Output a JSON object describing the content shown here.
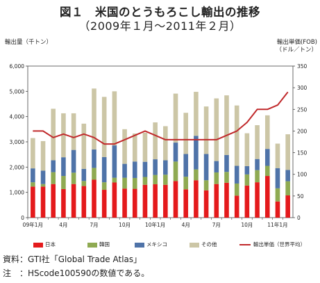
{
  "title_line1": "図１　米国のとうもろこし輸出の推移",
  "title_line2": "（2009年１月～2011年２月）",
  "left_axis_title": "輸出量（千トン）",
  "right_axis_title_1": "輸出単価(FOB)",
  "right_axis_title_2": "（ドル／トン）",
  "legend": {
    "japan": "日本",
    "korea": "韓国",
    "mexico": "メキシコ",
    "other": "その他",
    "price": "輸出単価（世界平均）"
  },
  "source_line": "資料：GTI社「Global Trade Atlas」",
  "note_line": "注　：HScode100590の数値である。",
  "colors": {
    "japan": "#e41a1c",
    "korea": "#8faa52",
    "mexico": "#4f73a8",
    "other": "#ccc6a6",
    "price": "#c0282a"
  },
  "chart_data": {
    "type": "bar",
    "stacked": true,
    "categories": [
      "09年1月",
      "",
      "",
      "4月",
      "",
      "",
      "7月",
      "",
      "",
      "10月",
      "",
      "",
      "10年1月",
      "",
      "",
      "4月",
      "",
      "",
      "7月",
      "",
      "",
      "10月",
      "",
      "",
      "11年1月",
      ""
    ],
    "series": [
      {
        "name": "日本",
        "values": [
          1230,
          1230,
          1330,
          1130,
          1330,
          1250,
          1500,
          1100,
          1390,
          1150,
          1140,
          1300,
          1320,
          1300,
          1450,
          1120,
          1480,
          1080,
          1330,
          1380,
          870,
          1270,
          1400,
          1650,
          640,
          880
        ]
      },
      {
        "name": "韓国",
        "values": [
          170,
          100,
          470,
          520,
          450,
          200,
          470,
          300,
          190,
          430,
          430,
          310,
          370,
          400,
          770,
          500,
          430,
          400,
          460,
          430,
          480,
          440,
          480,
          400,
          520,
          560
        ]
      },
      {
        "name": "メキシコ",
        "values": [
          550,
          530,
          470,
          740,
          900,
          480,
          730,
          1000,
          1280,
          550,
          650,
          600,
          620,
          570,
          750,
          900,
          1330,
          1040,
          450,
          670,
          700,
          330,
          440,
          670,
          800,
          450
        ]
      },
      {
        "name": "その他",
        "values": [
          1200,
          1170,
          2040,
          1740,
          1450,
          1790,
          2410,
          2380,
          2140,
          1370,
          1110,
          1150,
          1460,
          1350,
          1940,
          1630,
          1740,
          1880,
          2480,
          2360,
          2390,
          1300,
          1340,
          1330,
          970,
          1410
        ]
      }
    ],
    "line_series": {
      "name": "輸出単価（世界平均）",
      "axis": "right",
      "values": [
        200,
        200,
        185,
        193,
        185,
        193,
        185,
        170,
        170,
        180,
        190,
        200,
        190,
        180,
        180,
        180,
        180,
        180,
        180,
        190,
        200,
        220,
        250,
        250,
        260,
        290
      ]
    },
    "ylabel": "輸出量（千トン）",
    "y2label": "輸出単価(FOB)（ドル／トン）",
    "ylim": [
      0,
      6000
    ],
    "yticks": [
      "0",
      "1,000",
      "2,000",
      "3,000",
      "4,000",
      "5,000",
      "6,000"
    ],
    "y2lim": [
      0,
      350
    ],
    "y2ticks": [
      "0",
      "50",
      "100",
      "150",
      "200",
      "250",
      "300",
      "350"
    ],
    "grid": false,
    "legend_position": "bottom"
  }
}
